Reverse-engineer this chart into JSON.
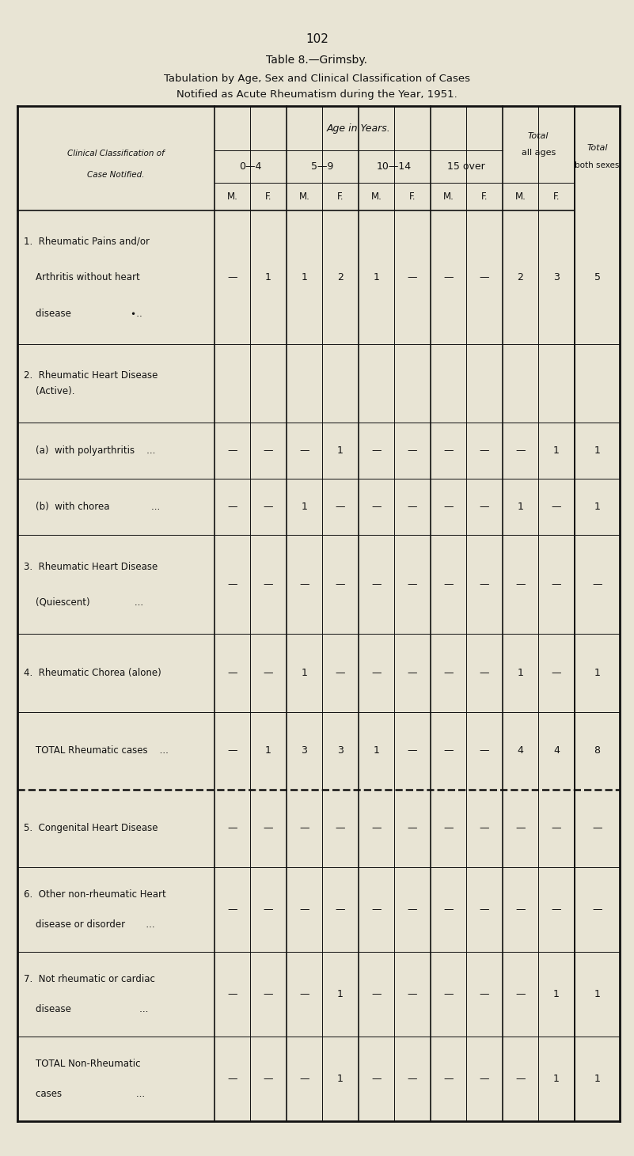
{
  "page_number": "102",
  "title_line1": "Table 8.—Grimsby.",
  "title_line2": "Tabulation by Age, Sex and Clinical Classification of Cases",
  "title_line3": "Notified as Acute Rheumatism during the Year, 1951.",
  "bg_color": "#e8e4d4",
  "text_color": "#1a1a1a",
  "age_groups": [
    "0—4",
    "5—9",
    "10—14",
    "15 over"
  ],
  "mf_labels": [
    "M.",
    "F.",
    "M.",
    "F.",
    "M.",
    "F.",
    "M.",
    "F.",
    "M.",
    "F."
  ],
  "data": {
    "row1": [
      "—",
      "1",
      "1",
      "2",
      "1",
      "—",
      "—",
      "—",
      "2",
      "3",
      "5"
    ],
    "row2a": [
      "—",
      "—",
      "—",
      "1",
      "—",
      "—",
      "—",
      "—",
      "—",
      "1",
      "1"
    ],
    "row2b": [
      "—",
      "—",
      "1",
      "—",
      "—",
      "—",
      "—",
      "—",
      "1",
      "—",
      "1"
    ],
    "row3": [
      "—",
      "—",
      "—",
      "—",
      "—",
      "—",
      "—",
      "—",
      "—",
      "—",
      "—"
    ],
    "row4": [
      "—",
      "—",
      "1",
      "—",
      "—",
      "—",
      "—",
      "—",
      "1",
      "—",
      "1"
    ],
    "rowT": [
      "—",
      "1",
      "3",
      "3",
      "1",
      "—",
      "—",
      "—",
      "4",
      "4",
      "8"
    ],
    "row5": [
      "—",
      "—",
      "—",
      "—",
      "—",
      "—",
      "—",
      "—",
      "—",
      "—",
      "—"
    ],
    "row6": [
      "—",
      "—",
      "—",
      "—",
      "—",
      "—",
      "—",
      "—",
      "—",
      "—",
      "—"
    ],
    "row7": [
      "—",
      "—",
      "—",
      "1",
      "—",
      "—",
      "—",
      "—",
      "—",
      "1",
      "1"
    ],
    "rowNT": [
      "—",
      "—",
      "—",
      "1",
      "—",
      "—",
      "—",
      "—",
      "—",
      "1",
      "1"
    ]
  }
}
